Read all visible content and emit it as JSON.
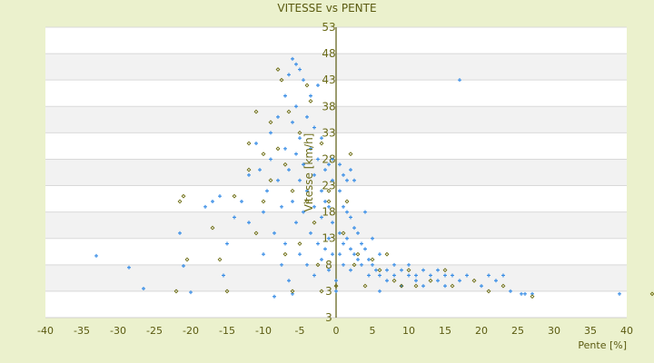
{
  "chart_data": {
    "type": "scatter",
    "title": "VITESSE vs PENTE",
    "xlabel": "Pente [%]",
    "ylabel": "Vitesse [km/h]",
    "xlim": [
      -40,
      40
    ],
    "ylim": [
      -2,
      53
    ],
    "grid": true,
    "x_ticks": [
      "-40",
      "-35",
      "-30",
      "-25",
      "-20",
      "-15",
      "-10",
      "-5",
      "0",
      "5",
      "10",
      "15",
      "20",
      "25",
      "30",
      "35",
      "40"
    ],
    "y_ticks": [
      "53",
      "48",
      "43",
      "38",
      "33",
      "28",
      "23",
      "18",
      "13",
      "8",
      "3",
      "3"
    ],
    "series": [
      {
        "name": "series-1",
        "color": "#3a8ee6",
        "marker": "cross",
        "points": [
          [
            -33,
            9.7
          ],
          [
            -28.5,
            7.5
          ],
          [
            -26.5,
            3.5
          ],
          [
            -21,
            7.8
          ],
          [
            -20,
            2.8
          ],
          [
            -21.5,
            14
          ],
          [
            -18,
            19
          ],
          [
            -17,
            20
          ],
          [
            -16,
            21
          ],
          [
            -15.5,
            6
          ],
          [
            -15,
            12
          ],
          [
            -14,
            17
          ],
          [
            -13,
            20
          ],
          [
            -12,
            16
          ],
          [
            -12,
            25
          ],
          [
            -11,
            31
          ],
          [
            -10.5,
            26
          ],
          [
            -10,
            18
          ],
          [
            -10,
            10
          ],
          [
            -9.5,
            22
          ],
          [
            -9,
            33
          ],
          [
            -9,
            28
          ],
          [
            -8.5,
            14
          ],
          [
            -8.5,
            2
          ],
          [
            -8,
            36
          ],
          [
            -8,
            24
          ],
          [
            -7.5,
            19
          ],
          [
            -7.5,
            8
          ],
          [
            -7,
            40
          ],
          [
            -7,
            30
          ],
          [
            -7,
            12
          ],
          [
            -6.5,
            44
          ],
          [
            -6.5,
            26
          ],
          [
            -6.5,
            5
          ],
          [
            -6,
            47
          ],
          [
            -6,
            35
          ],
          [
            -6,
            20
          ],
          [
            -6,
            2.5
          ],
          [
            -5.5,
            46
          ],
          [
            -5.5,
            38
          ],
          [
            -5.5,
            29
          ],
          [
            -5.5,
            16
          ],
          [
            -5,
            45
          ],
          [
            -5,
            32
          ],
          [
            -5,
            24
          ],
          [
            -5,
            10
          ],
          [
            -4.5,
            43
          ],
          [
            -4.5,
            27
          ],
          [
            -4.5,
            18
          ],
          [
            -4,
            36
          ],
          [
            -4,
            22
          ],
          [
            -4,
            8
          ],
          [
            -3.5,
            40
          ],
          [
            -3.5,
            30
          ],
          [
            -3.5,
            14
          ],
          [
            -3,
            34
          ],
          [
            -3,
            25
          ],
          [
            -3,
            19
          ],
          [
            -3,
            6
          ],
          [
            -2.5,
            42
          ],
          [
            -2.5,
            28
          ],
          [
            -2.5,
            12
          ],
          [
            -2,
            32
          ],
          [
            -2,
            22
          ],
          [
            -2,
            17
          ],
          [
            -2,
            9
          ],
          [
            -1.5,
            26
          ],
          [
            -1.5,
            20
          ],
          [
            -1.5,
            11
          ],
          [
            -1,
            27
          ],
          [
            -1,
            19
          ],
          [
            -1,
            13
          ],
          [
            -1,
            7
          ],
          [
            -0.5,
            28
          ],
          [
            -0.5,
            24
          ],
          [
            -0.5,
            16
          ],
          [
            -0.5,
            10
          ],
          [
            0,
            3
          ],
          [
            0,
            5
          ],
          [
            0.5,
            27
          ],
          [
            0.5,
            22
          ],
          [
            0.5,
            14
          ],
          [
            0.5,
            10
          ],
          [
            1,
            25
          ],
          [
            1,
            19
          ],
          [
            1,
            12
          ],
          [
            1,
            8
          ],
          [
            1.5,
            24
          ],
          [
            1.5,
            18
          ],
          [
            1.5,
            13
          ],
          [
            2,
            26
          ],
          [
            2,
            17
          ],
          [
            2,
            11
          ],
          [
            2,
            7
          ],
          [
            2.5,
            24
          ],
          [
            2.5,
            15
          ],
          [
            2.5,
            10
          ],
          [
            3,
            14
          ],
          [
            3,
            9
          ],
          [
            3.5,
            12
          ],
          [
            3.5,
            8
          ],
          [
            4,
            18
          ],
          [
            4,
            11
          ],
          [
            4.5,
            9
          ],
          [
            4.5,
            6
          ],
          [
            5,
            13
          ],
          [
            5,
            8
          ],
          [
            5.5,
            7
          ],
          [
            6,
            10
          ],
          [
            6,
            6
          ],
          [
            6,
            3
          ],
          [
            7,
            7
          ],
          [
            7,
            5
          ],
          [
            8,
            8
          ],
          [
            8,
            6
          ],
          [
            9,
            7
          ],
          [
            9,
            4
          ],
          [
            10,
            6
          ],
          [
            10,
            8
          ],
          [
            11,
            6
          ],
          [
            11,
            5
          ],
          [
            12,
            7
          ],
          [
            12,
            4
          ],
          [
            13,
            6
          ],
          [
            14,
            5
          ],
          [
            14,
            7
          ],
          [
            15,
            6
          ],
          [
            15,
            4
          ],
          [
            16,
            6
          ],
          [
            17,
            5
          ],
          [
            17,
            43
          ],
          [
            18,
            6
          ],
          [
            20,
            4
          ],
          [
            21,
            6
          ],
          [
            22,
            5
          ],
          [
            23,
            6
          ],
          [
            24,
            3
          ],
          [
            25.5,
            2.5
          ],
          [
            26,
            2.5
          ],
          [
            27,
            2.5
          ],
          [
            39,
            2.5
          ]
        ]
      },
      {
        "name": "series-2",
        "color": "#6b6b10",
        "marker": "diamond",
        "points": [
          [
            -22,
            3
          ],
          [
            -21.5,
            20
          ],
          [
            -21,
            21
          ],
          [
            -20.5,
            9
          ],
          [
            -17,
            15
          ],
          [
            -16,
            9
          ],
          [
            -15,
            3
          ],
          [
            -14,
            21
          ],
          [
            -12,
            31
          ],
          [
            -12,
            26
          ],
          [
            -11,
            37
          ],
          [
            -11,
            14
          ],
          [
            -10,
            20
          ],
          [
            -10,
            29
          ],
          [
            -9,
            35
          ],
          [
            -9,
            24
          ],
          [
            -8,
            45
          ],
          [
            -8,
            30
          ],
          [
            -7.5,
            43
          ],
          [
            -7,
            27
          ],
          [
            -7,
            10
          ],
          [
            -6.5,
            37
          ],
          [
            -6,
            22
          ],
          [
            -6,
            3
          ],
          [
            -5,
            33
          ],
          [
            -5,
            12
          ],
          [
            -4,
            42
          ],
          [
            -4,
            20
          ],
          [
            -3.5,
            39
          ],
          [
            -3,
            16
          ],
          [
            -2.5,
            8
          ],
          [
            -2,
            31
          ],
          [
            -2,
            3
          ],
          [
            -1,
            22
          ],
          [
            -1,
            20
          ],
          [
            0,
            4
          ],
          [
            1,
            14
          ],
          [
            1.5,
            20
          ],
          [
            2,
            29
          ],
          [
            2.5,
            8
          ],
          [
            3,
            10
          ],
          [
            4,
            4
          ],
          [
            5,
            9
          ],
          [
            6,
            7
          ],
          [
            7,
            10
          ],
          [
            8,
            5
          ],
          [
            9,
            4
          ],
          [
            10,
            7
          ],
          [
            11,
            4
          ],
          [
            13,
            5
          ],
          [
            15,
            7
          ],
          [
            16,
            4
          ],
          [
            19,
            5
          ],
          [
            21,
            3
          ],
          [
            23,
            4
          ],
          [
            27,
            2
          ],
          [
            43.5,
            2.5
          ]
        ]
      }
    ]
  }
}
